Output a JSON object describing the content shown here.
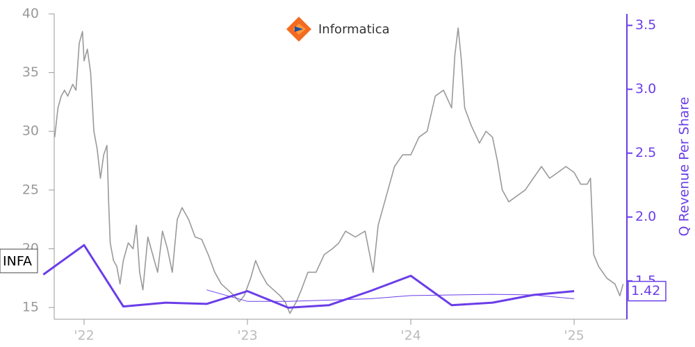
{
  "chart_data": {
    "type": "line",
    "logo_text": "Informatica",
    "y2_label": "Q Revenue Per Share",
    "xlim": [
      2021.817,
      2025.323
    ],
    "xticks": [
      {
        "value": 2022,
        "label": "'22"
      },
      {
        "value": 2023,
        "label": "'23"
      },
      {
        "value": 2024,
        "label": "'24"
      },
      {
        "value": 2025,
        "label": "'25"
      }
    ],
    "ylim": [
      14,
      40
    ],
    "yticks": [
      15,
      20,
      25,
      30,
      35,
      40
    ],
    "y2lim": [
      1.2,
      3.59
    ],
    "y2ticks": [
      1.5,
      2.0,
      2.5,
      3.0,
      3.5
    ],
    "series": [
      {
        "name": "INFA",
        "color": "#999999",
        "x": [
          2021.82,
          2021.84,
          2021.86,
          2021.88,
          2021.9,
          2021.93,
          2021.95,
          2021.97,
          2021.99,
          2022.0,
          2022.02,
          2022.04,
          2022.06,
          2022.08,
          2022.1,
          2022.12,
          2022.14,
          2022.15,
          2022.16,
          2022.18,
          2022.2,
          2022.22,
          2022.24,
          2022.27,
          2022.3,
          2022.32,
          2022.34,
          2022.36,
          2022.39,
          2022.42,
          2022.45,
          2022.48,
          2022.51,
          2022.54,
          2022.57,
          2022.6,
          2022.64,
          2022.68,
          2022.72,
          2022.76,
          2022.8,
          2022.84,
          2022.88,
          2022.92,
          2022.95,
          2022.98,
          2023.02,
          2023.05,
          2023.08,
          2023.12,
          2023.16,
          2023.2,
          2023.23,
          2023.26,
          2023.3,
          2023.33,
          2023.37,
          2023.42,
          2023.47,
          2023.52,
          2023.56,
          2023.6,
          2023.66,
          2023.72,
          2023.77,
          2023.8,
          2023.84,
          2023.9,
          2023.95,
          2024.0,
          2024.05,
          2024.1,
          2024.15,
          2024.2,
          2024.25,
          2024.27,
          2024.29,
          2024.31,
          2024.33,
          2024.37,
          2024.42,
          2024.46,
          2024.5,
          2024.53,
          2024.56,
          2024.6,
          2024.65,
          2024.7,
          2024.75,
          2024.8,
          2024.85,
          2024.9,
          2024.95,
          2025.0,
          2025.04,
          2025.08,
          2025.1,
          2025.12,
          2025.15,
          2025.2,
          2025.25,
          2025.28,
          2025.3
        ],
        "values": [
          29.5,
          32,
          33,
          33.5,
          33,
          34,
          33.5,
          37.5,
          38.5,
          36,
          37,
          35,
          30,
          28.5,
          26,
          28,
          28.8,
          24,
          20.5,
          19,
          18.5,
          17,
          19,
          20.5,
          20,
          22,
          18,
          16.5,
          21,
          19.5,
          18,
          21.5,
          20,
          18,
          22.5,
          23.5,
          22.5,
          21,
          20.8,
          19.5,
          18,
          17,
          16.5,
          16,
          15.5,
          16,
          17.5,
          19,
          18,
          17,
          16.5,
          16,
          15.5,
          14.5,
          15.5,
          16.5,
          18,
          18,
          19.5,
          20,
          20.5,
          21.5,
          21,
          21.5,
          18,
          22,
          24,
          27,
          28,
          28,
          29.5,
          30,
          33,
          33.5,
          32,
          36.5,
          38.8,
          36,
          32,
          30.5,
          29,
          30,
          29.5,
          27.5,
          25,
          24,
          24.5,
          25,
          26,
          27,
          26,
          26.5,
          27,
          26.5,
          25.5,
          25.5,
          26,
          19.5,
          18.5,
          17.5,
          17,
          16,
          17
        ]
      },
      {
        "color": "#6a3de8",
        "axis": "y2",
        "x": [
          2021.75,
          2022.0,
          2022.24,
          2022.5,
          2022.75,
          2023.0,
          2023.25,
          2023.5,
          2023.75,
          2024.0,
          2024.25,
          2024.5,
          2024.75,
          2025.0
        ],
        "values": [
          1.55,
          1.78,
          1.3,
          1.33,
          1.32,
          1.42,
          1.29,
          1.31,
          1.42,
          1.54,
          1.31,
          1.33,
          1.39,
          1.42
        ]
      },
      {
        "color": "#6a3de8",
        "axis": "y2",
        "x": [
          2022.75,
          2023.0,
          2023.25,
          2023.5,
          2023.75,
          2024.0,
          2024.25,
          2024.5,
          2024.75,
          2025.0
        ],
        "values": [
          1.43,
          1.34,
          1.34,
          1.35,
          1.36,
          1.385,
          1.39,
          1.395,
          1.39,
          1.36
        ]
      }
    ]
  }
}
